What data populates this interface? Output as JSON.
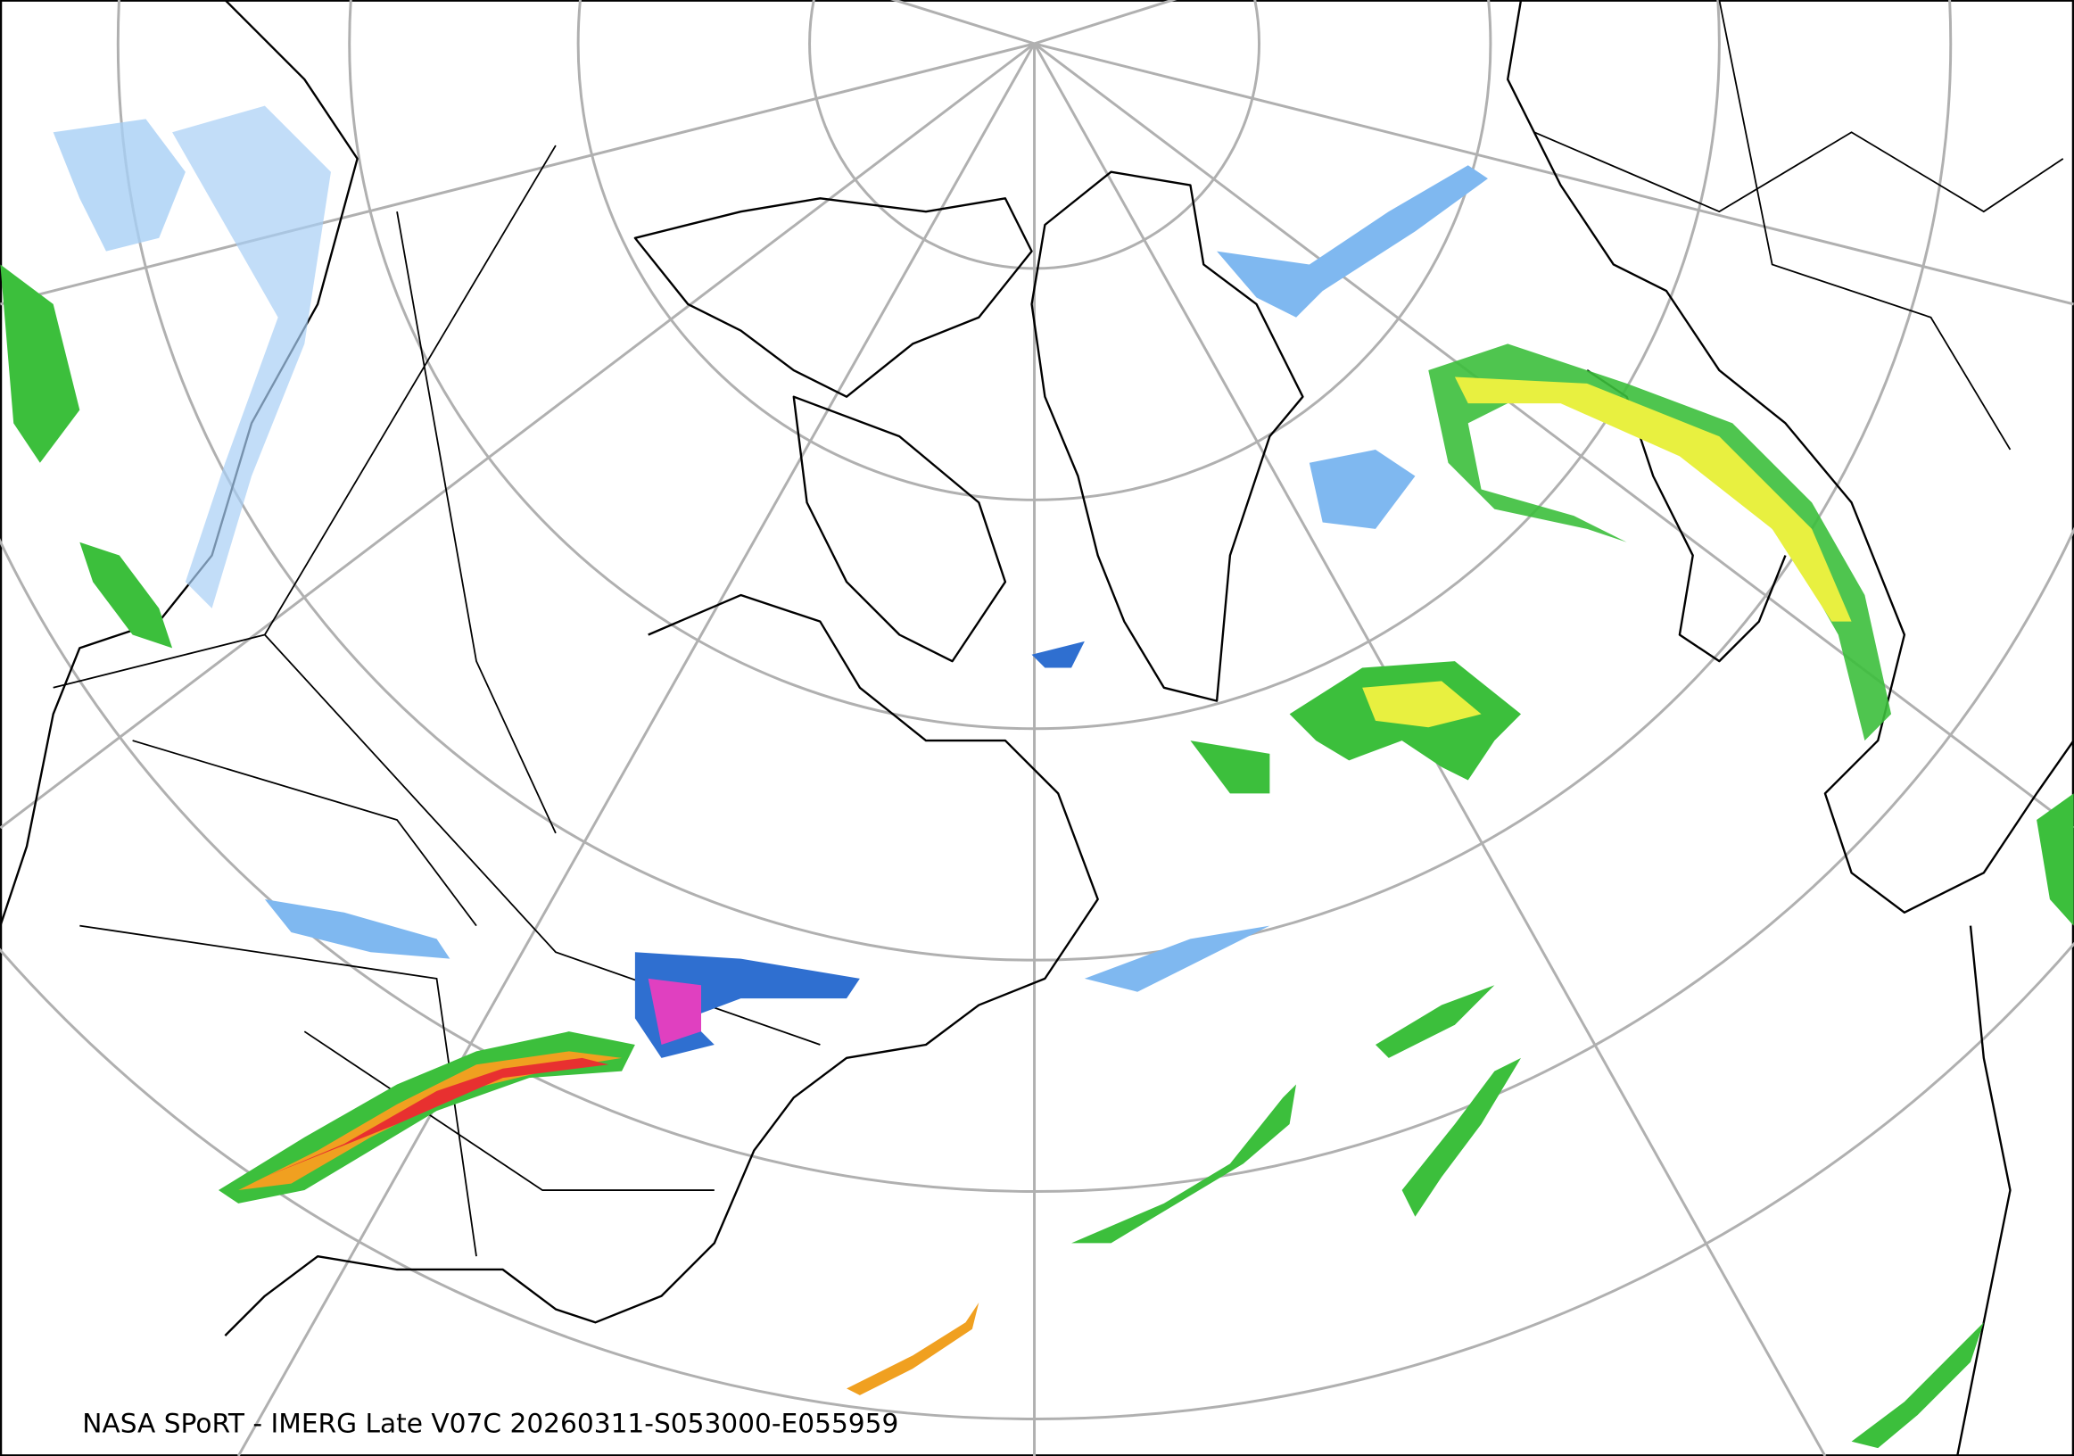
{
  "map": {
    "caption": "NASA SPoRT - IMERG Late V07C 20260311-S053000-E055959"
  }
}
